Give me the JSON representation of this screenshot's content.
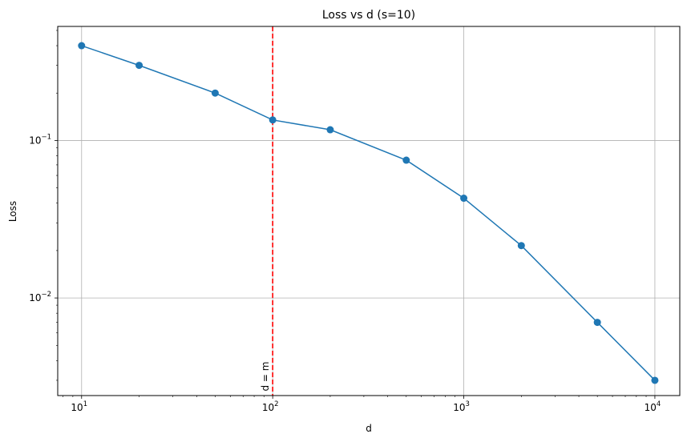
{
  "chart_data": {
    "type": "line",
    "title": "Loss vs d (s=10)",
    "xlabel": "d",
    "ylabel": "Loss",
    "xscale": "log",
    "yscale": "log",
    "xlim": [
      7.5,
      13500
    ],
    "ylim": [
      0.0024,
      0.53
    ],
    "grid": true,
    "x_ticks": [
      {
        "value": 10,
        "base": "10",
        "exp": "1"
      },
      {
        "value": 100,
        "base": "10",
        "exp": "2"
      },
      {
        "value": 1000,
        "base": "10",
        "exp": "3"
      },
      {
        "value": 10000,
        "base": "10",
        "exp": "4"
      }
    ],
    "y_ticks": [
      {
        "value": 0.01,
        "base": "10",
        "exp": "−2"
      },
      {
        "value": 0.1,
        "base": "10",
        "exp": "−1"
      }
    ],
    "series": [
      {
        "color": "#1f77b4",
        "marker": "circle",
        "x": [
          10,
          20,
          50,
          100,
          200,
          500,
          1000,
          2000,
          5000,
          10000
        ],
        "y": [
          0.4,
          0.3,
          0.2,
          0.135,
          0.117,
          0.075,
          0.043,
          0.0215,
          0.007,
          0.003
        ]
      }
    ],
    "annotations": [
      {
        "type": "vline",
        "x": 100,
        "color": "#ff0000",
        "style": "dashed",
        "label": "d = m"
      }
    ]
  }
}
